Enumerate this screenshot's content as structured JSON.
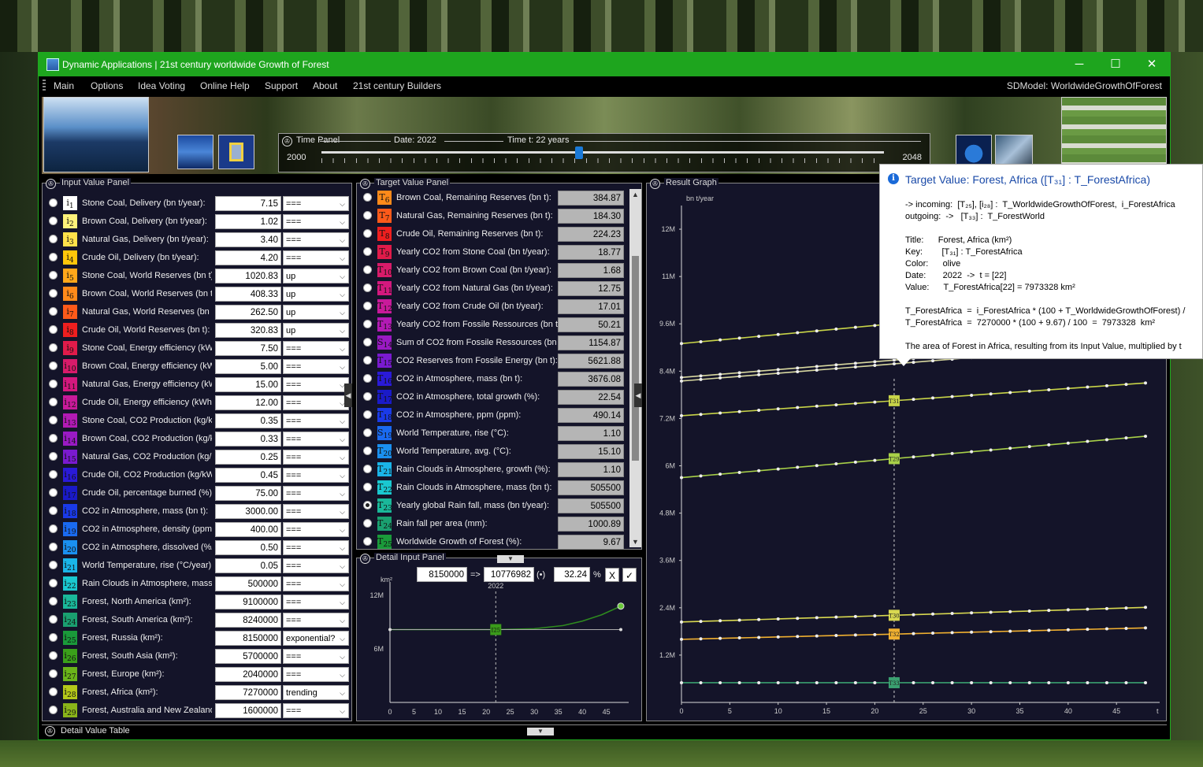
{
  "window": {
    "title": "Dynamic Applications | 21st century worldwide Growth of Forest",
    "minimize": "─",
    "maximize": "☐",
    "close": "✕"
  },
  "menu": {
    "items": [
      "Main",
      "Options",
      "Idea Voting",
      "Online Help",
      "Support",
      "About",
      "21st century Builders"
    ],
    "sdmodel": "SDModel:  WorldwideGrowthOfForest"
  },
  "time_panel": {
    "title": "Time Panel",
    "date_label": "Date:  2022",
    "time_label": "Time t: 22  years",
    "start": "2000",
    "end": "2048",
    "progress": 0.458
  },
  "input_panel": {
    "title": "Input Value Panel",
    "rows": [
      {
        "sub": "1",
        "color": "#ffffff",
        "label": "Stone Coal, Delivery (bn t/year):",
        "value": "7.15",
        "mode": "==="
      },
      {
        "sub": "2",
        "color": "#fff27a",
        "label": "Brown Coal, Delivery (bn t/year):",
        "value": "1.02",
        "mode": "==="
      },
      {
        "sub": "3",
        "color": "#ffe14a",
        "label": "Natural Gas, Delivery (bn t/year):",
        "value": "3.40",
        "mode": "==="
      },
      {
        "sub": "4",
        "color": "#ffc60a",
        "label": "Crude Oil, Delivery (bn t/year):",
        "value": "4.20",
        "mode": "==="
      },
      {
        "sub": "5",
        "color": "#ffa71a",
        "label": "Stone Coal, World Reserves (bn t):",
        "value": "1020.83",
        "mode": "up"
      },
      {
        "sub": "6",
        "color": "#ff8a1a",
        "label": "Brown Coal, World Reserves (bn t):",
        "value": "408.33",
        "mode": "up"
      },
      {
        "sub": "7",
        "color": "#ff5a1a",
        "label": "Natural Gas, World Reserves (bn t):",
        "value": "262.50",
        "mode": "up"
      },
      {
        "sub": "8",
        "color": "#ee1f1f",
        "label": "Crude Oil, World Reserves (bn t):",
        "value": "320.83",
        "mode": "up"
      },
      {
        "sub": "9",
        "color": "#e01b4a",
        "label": "Stone Coal, Energy efficiency (kWh",
        "value": "7.50",
        "mode": "==="
      },
      {
        "sub": "10",
        "color": "#d81b6a",
        "label": "Brown Coal, Energy efficiency (kWh",
        "value": "5.00",
        "mode": "==="
      },
      {
        "sub": "11",
        "color": "#d4187e",
        "label": "Natural Gas, Energy efficiency (kWh",
        "value": "15.00",
        "mode": "==="
      },
      {
        "sub": "12",
        "color": "#c81a9a",
        "label": "Crude Oil, Energy efficiency (kWh/k",
        "value": "12.00",
        "mode": "==="
      },
      {
        "sub": "13",
        "color": "#b21ab4",
        "label": "Stone Coal, CO2 Production (kg/kW",
        "value": "0.35",
        "mode": "==="
      },
      {
        "sub": "14",
        "color": "#9a1ac4",
        "label": "Brown Coal, CO2 Production (kg/kW",
        "value": "0.33",
        "mode": "==="
      },
      {
        "sub": "15",
        "color": "#7a1ad0",
        "label": "Natural Gas, CO2 Production (kg/kV",
        "value": "0.25",
        "mode": "==="
      },
      {
        "sub": "16",
        "color": "#2a1ad8",
        "label": "Crude Oil, CO2 Production (kg/kWh",
        "value": "0.45",
        "mode": "==="
      },
      {
        "sub": "17",
        "color": "#1a1ac8",
        "label": "Crude Oil, percentage burned (%):",
        "value": "75.00",
        "mode": "==="
      },
      {
        "sub": "18",
        "color": "#1a3ae8",
        "label": "CO2 in Atmosphere, mass (bn t):",
        "value": "3000.00",
        "mode": "==="
      },
      {
        "sub": "19",
        "color": "#1a6af0",
        "label": "CO2 in Atmosphere, density (ppm):",
        "value": "400.00",
        "mode": "==="
      },
      {
        "sub": "20",
        "color": "#1a90f0",
        "label": "CO2 in Atmosphere, dissolved (%/ye",
        "value": "0.50",
        "mode": "==="
      },
      {
        "sub": "21",
        "color": "#1ab4e8",
        "label": "World Temperature, rise (°C/year):",
        "value": "0.05",
        "mode": "==="
      },
      {
        "sub": "22",
        "color": "#1ac8d0",
        "label": "Rain Clouds in Atmosphere, mass (b",
        "value": "500000",
        "mode": "==="
      },
      {
        "sub": "23",
        "color": "#1ab89a",
        "label": "Forest, North America (km²):",
        "value": "9100000",
        "mode": "==="
      },
      {
        "sub": "24",
        "color": "#1aa070",
        "label": "Forest, South America (km²):",
        "value": "8240000",
        "mode": "==="
      },
      {
        "sub": "25",
        "color": "#1a9a3a",
        "label": "Forest, Russia (km²):",
        "value": "8150000",
        "mode": "exponential?"
      },
      {
        "sub": "26",
        "color": "#3aa01a",
        "label": "Forest, South Asia (km²):",
        "value": "5700000",
        "mode": "==="
      },
      {
        "sub": "27",
        "color": "#6ab41a",
        "label": "Forest, Europe (km²):",
        "value": "2040000",
        "mode": "==="
      },
      {
        "sub": "28",
        "color": "#b4c81a",
        "label": "Forest, Africa (km²):",
        "value": "7270000",
        "mode": "trending"
      },
      {
        "sub": "29",
        "color": "#8ab41a",
        "label": "Forest, Australia and New Zealand",
        "value": "1600000",
        "mode": "==="
      }
    ]
  },
  "target_panel": {
    "title": "Target Value Panel",
    "rows": [
      {
        "sym": "T",
        "sub": "6",
        "color": "#ff8a1a",
        "label": "Brown Coal, Remaining Reserves (bn t):",
        "value": "384.87",
        "selected": false
      },
      {
        "sym": "T",
        "sub": "7",
        "color": "#ff5a1a",
        "label": "Natural Gas, Remaining Reserves (bn t):",
        "value": "184.30",
        "selected": false
      },
      {
        "sym": "T",
        "sub": "8",
        "color": "#ee1f1f",
        "label": "Crude Oil, Remaining Reserves (bn t):",
        "value": "224.23",
        "selected": false
      },
      {
        "sym": "T",
        "sub": "9",
        "color": "#e01b4a",
        "label": "Yearly CO2 from Stone Coal (bn t/year):",
        "value": "18.77",
        "selected": false
      },
      {
        "sym": "T",
        "sub": "10",
        "color": "#d81b6a",
        "label": "Yearly CO2 from Brown Coal (bn t/year):",
        "value": "1.68",
        "selected": false
      },
      {
        "sym": "T",
        "sub": "11",
        "color": "#d4187e",
        "label": "Yearly CO2 from Natural Gas (bn t/year):",
        "value": "12.75",
        "selected": false
      },
      {
        "sym": "T",
        "sub": "12",
        "color": "#c81a9a",
        "label": "Yearly CO2 from Crude Oil (bn t/year):",
        "value": "17.01",
        "selected": false
      },
      {
        "sym": "T",
        "sub": "13",
        "color": "#b21ab4",
        "label": "Yearly CO2 from Fossile Ressources (bn t/ye",
        "value": "50.21",
        "selected": false
      },
      {
        "sym": "S",
        "sub": "14",
        "color": "#9a1ac4",
        "label": "Sum of CO2 from Fossile Ressources (bn t):",
        "value": "1154.87",
        "selected": false
      },
      {
        "sym": "T",
        "sub": "15",
        "color": "#7a1ad0",
        "label": "CO2 Reserves from Fossile Energy (bn t):",
        "value": "5621.88",
        "selected": false
      },
      {
        "sym": "T",
        "sub": "16",
        "color": "#2a1ad8",
        "label": "CO2 in Atmosphere, mass (bn t):",
        "value": "3676.08",
        "selected": false
      },
      {
        "sym": "T",
        "sub": "17",
        "color": "#1a1ac8",
        "label": "CO2 in Atmosphere, total growth (%):",
        "value": "22.54",
        "selected": false
      },
      {
        "sym": "T",
        "sub": "18",
        "color": "#1a3ae8",
        "label": "CO2 in Atmosphere, ppm (ppm):",
        "value": "490.14",
        "selected": false
      },
      {
        "sym": "S",
        "sub": "19",
        "color": "#1a6af0",
        "label": "World Temperature, rise (°C):",
        "value": "1.10",
        "selected": false
      },
      {
        "sym": "T",
        "sub": "20",
        "color": "#1a90f0",
        "label": "World Temperature, avg. (°C):",
        "value": "15.10",
        "selected": false
      },
      {
        "sym": "T",
        "sub": "21",
        "color": "#1ab4e8",
        "label": "Rain Clouds in Atmosphere, growth (%):",
        "value": "1.10",
        "selected": false
      },
      {
        "sym": "T",
        "sub": "22",
        "color": "#1ac8d0",
        "label": "Rain Clouds in Atmosphere, mass (bn t):",
        "value": "505500",
        "selected": false
      },
      {
        "sym": "T",
        "sub": "23",
        "color": "#1ab89a",
        "label": "Yearly global Rain fall, mass (bn t/year):",
        "value": "505500",
        "selected": true
      },
      {
        "sym": "T",
        "sub": "24",
        "color": "#1aa070",
        "label": "Rain fall per area (mm):",
        "value": "1000.89",
        "selected": false
      },
      {
        "sym": "T",
        "sub": "25",
        "color": "#1a9a3a",
        "label": "Worldwide Growth of Forest (%):",
        "value": "9.67",
        "selected": false
      }
    ]
  },
  "detail_input": {
    "title": "Detail Input Panel",
    "from": "8150000",
    "arrow": "=>",
    "to": "10776982",
    "marker": "(•)",
    "percent": "32.24",
    "percent_sign": "%",
    "cancel": "X",
    "confirm": "✓",
    "unit": "km²",
    "year": "2022",
    "marker_label": "I25",
    "ymax": "12M",
    "ymid": "6M",
    "xticks": [
      "0",
      "5",
      "10",
      "15",
      "20",
      "25",
      "30",
      "35",
      "40",
      "45"
    ]
  },
  "result_graph": {
    "title": "Result Graph",
    "ylabel": "bn t/year",
    "xlabel": "t",
    "yticks": [
      "1.2M",
      "2.4M",
      "3.6M",
      "4.8M",
      "6M",
      "7.2M",
      "8.4M",
      "9.6M",
      "11M",
      "12M"
    ],
    "xticks": [
      "0",
      "5",
      "10",
      "15",
      "20",
      "25",
      "30",
      "35",
      "40",
      "45"
    ],
    "markers": [
      "T31",
      "T29",
      "T30",
      "T32",
      "T33"
    ]
  },
  "tooltip": {
    "header": "Target Value:  Forest, Africa  ([T₃₁] : T_ForestAfrica)",
    "lines": [
      "-> incoming:  [T₂₅], [i₂₈] :  T_WorldwideGrowthOfForest,  i_ForestAfrica",
      "outgoing:  ->   [T₃₃] :  T_ForestWorld",
      "Title:      Forest, Africa (km²)",
      "Key:        [T₃₁] : T_ForestAfrica",
      "Color:      olive",
      "Date:       2022  ->  t = [22]",
      "Value:      T_ForestAfrica[22] = 7973328 km²",
      "T_ForestAfrica  =  i_ForestAfrica * (100 + T_WorldwideGrowthOfForest) /",
      "T_ForestAfrica  =  7270000 * (100 + 9.67) / 100  =  7973328  km²",
      "The area of Forest in Africa, resulting from its Input Value, multiplied by t"
    ]
  },
  "detail_value_table": {
    "title": "Detail Value Table"
  },
  "chart_data": [
    {
      "type": "line",
      "title": "",
      "xlabel": "t",
      "ylabel": "bn t/year",
      "xlim": [
        0,
        48
      ],
      "ylim": [
        0,
        12600000
      ],
      "series": [
        {
          "name": "T31",
          "color": "#c8d448",
          "x": [
            0,
            48
          ],
          "y": [
            7270000,
            8100000
          ]
        },
        {
          "name": "",
          "color": "#c8d448",
          "x": [
            0,
            48
          ],
          "y": [
            9100000,
            10200000
          ]
        },
        {
          "name": "",
          "color": "#d8d8a0",
          "x": [
            0,
            48
          ],
          "y": [
            8240000,
            9200000
          ]
        },
        {
          "name": "",
          "color": "#d8d8a0",
          "x": [
            0,
            48
          ],
          "y": [
            8150000,
            9100000
          ]
        },
        {
          "name": "T29",
          "color": "#a8d048",
          "x": [
            0,
            48
          ],
          "y": [
            5700000,
            6750000
          ]
        },
        {
          "name": "T30",
          "color": "#d8d850",
          "x": [
            0,
            48
          ],
          "y": [
            2040000,
            2410000
          ]
        },
        {
          "name": "T32",
          "color": "#f0b030",
          "x": [
            0,
            48
          ],
          "y": [
            1600000,
            1890000
          ]
        },
        {
          "name": "T33",
          "color": "#3aa070",
          "x": [
            0,
            48
          ],
          "y": [
            500000,
            500000
          ]
        }
      ]
    },
    {
      "type": "line",
      "title": "",
      "xlabel": "",
      "ylabel": "km²",
      "xlim": [
        0,
        48
      ],
      "ylim": [
        0,
        12600000
      ],
      "series": [
        {
          "name": "",
          "color": "#2e8b1e",
          "x": [
            0,
            22,
            30,
            36,
            40,
            44,
            48
          ],
          "y": [
            8150000,
            8150000,
            8250000,
            8600000,
            9100000,
            9800000,
            10776982
          ]
        },
        {
          "name": "",
          "color": "#aaaaaa",
          "x": [
            0,
            48
          ],
          "y": [
            8150000,
            8150000
          ]
        }
      ]
    }
  ]
}
